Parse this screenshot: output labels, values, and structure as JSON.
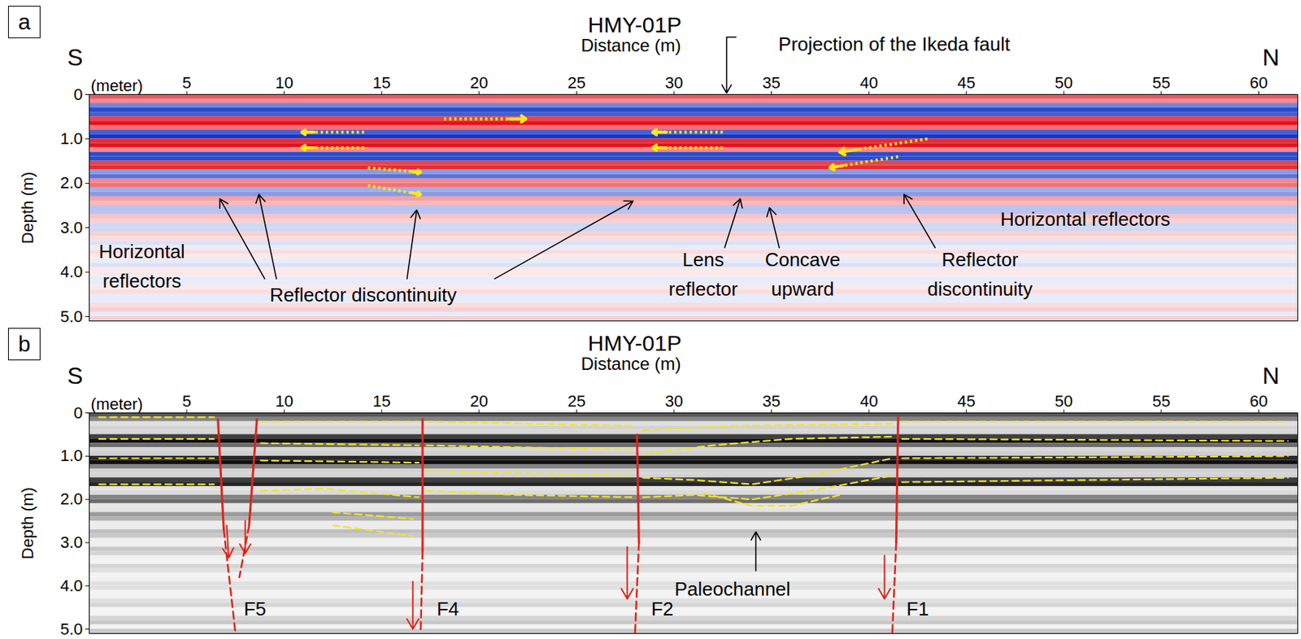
{
  "chart_data": [
    {
      "type": "radargram",
      "panel": "a",
      "title": "HMY-01P",
      "x_label": "Distance (m)",
      "x_units": "(meter)",
      "y_label": "Depth (m)",
      "left_label": "S",
      "right_label": "N",
      "color": "red-blue",
      "xlim": [
        0,
        62
      ],
      "xticks": [
        5,
        10,
        15,
        20,
        25,
        30,
        35,
        40,
        45,
        50,
        55,
        60
      ],
      "ylim": [
        0,
        5.1
      ],
      "yticks": [
        0,
        {
          "value": 1,
          "label": "1.0"
        },
        {
          "value": 2,
          "label": "2.0"
        },
        {
          "value": 3,
          "label": "3.0"
        },
        {
          "value": 4,
          "label": "4.0"
        },
        {
          "value": 5,
          "label": "5.0"
        }
      ],
      "amplitude_lim": [
        -1,
        1
      ],
      "depth_bins": [
        0,
        0.1,
        0.2,
        0.3,
        0.4,
        0.5,
        0.6,
        0.7,
        0.8,
        0.9,
        1.0,
        1.1,
        1.2,
        1.3,
        1.4,
        1.5,
        1.6,
        1.7,
        1.8,
        1.9,
        2.0,
        2.1,
        2.2,
        2.3,
        2.4,
        2.5,
        2.6,
        2.7,
        2.8,
        2.9,
        3.0,
        3.1,
        3.2,
        3.3,
        3.4,
        3.5,
        3.6,
        3.7,
        3.8,
        3.9,
        4.0,
        4.1,
        4.2,
        4.3,
        4.4,
        4.5,
        4.6,
        4.7,
        4.8,
        4.9,
        5.0,
        5.1
      ],
      "amplitude": [
        0.7,
        0.5,
        -0.6,
        -0.9,
        -0.8,
        0.8,
        1.0,
        0.6,
        -0.8,
        -1.0,
        0.9,
        1.0,
        0.5,
        -0.9,
        -0.9,
        0.8,
        0.9,
        -0.5,
        -0.7,
        0.5,
        0.6,
        -0.4,
        -0.5,
        0.4,
        0.3,
        -0.3,
        -0.3,
        0.25,
        0.2,
        -0.2,
        -0.2,
        0.2,
        0.15,
        -0.15,
        -0.1,
        0.15,
        0.1,
        -0.1,
        -0.15,
        0.1,
        0.1,
        -0.1,
        -0.1,
        0.1,
        0.15,
        -0.1,
        -0.1,
        0.15,
        0.2,
        -0.1,
        0.2
      ],
      "yellow_arrows": [
        [
          14.1,
          0.85,
          10.9,
          0.85
        ],
        [
          14.1,
          1.2,
          10.9,
          1.2
        ],
        [
          14.3,
          1.65,
          17.0,
          1.75
        ],
        [
          14.3,
          2.05,
          17.0,
          2.25
        ],
        [
          18.2,
          0.55,
          22.4,
          0.55
        ],
        [
          32.5,
          0.85,
          28.9,
          0.85
        ],
        [
          32.5,
          1.2,
          28.9,
          1.2
        ],
        [
          43.0,
          1.0,
          38.5,
          1.3
        ],
        [
          41.5,
          1.4,
          38.0,
          1.65
        ]
      ],
      "top_annotation": {
        "text": "Projection of the Ikeda fault",
        "x": 41.3,
        "arrow_x": 32.7
      },
      "annotations": [
        {
          "text": "Horizontal\nreflectors",
          "x": 2.7,
          "y": 3.8,
          "pointers": []
        },
        {
          "text": "Reflector discontinuity",
          "x": 14.05,
          "y": 4.45,
          "pointers": [
            [
              9.0,
              4.15,
              6.7,
              2.35
            ],
            [
              9.6,
              4.15,
              8.7,
              2.25
            ],
            [
              16.3,
              4.15,
              16.8,
              2.6
            ],
            [
              20.8,
              4.15,
              27.9,
              2.4
            ]
          ]
        },
        {
          "text": "Lens\nreflector",
          "x": 31.5,
          "y": 3.98,
          "pointers": [
            [
              32.6,
              3.45,
              33.4,
              2.35
            ]
          ]
        },
        {
          "text": "Concave\nupward",
          "x": 36.6,
          "y": 3.98,
          "pointers": [
            [
              35.4,
              3.45,
              34.9,
              2.55
            ]
          ]
        },
        {
          "text": "Reflector\ndiscontinuity",
          "x": 45.7,
          "y": 3.98,
          "pointers": [
            [
              43.4,
              3.45,
              41.8,
              2.25
            ]
          ]
        },
        {
          "text": "Horizontal reflectors",
          "x": 51.1,
          "y": 2.75,
          "pointers": []
        }
      ]
    },
    {
      "type": "radargram",
      "panel": "b",
      "title": "HMY-01P",
      "x_label": "Distance (m)",
      "x_units": "(meter)",
      "y_label": "Depth (m)",
      "left_label": "S",
      "right_label": "N",
      "color": "gray",
      "xlim": [
        0,
        62
      ],
      "xticks": [
        5,
        10,
        15,
        20,
        25,
        30,
        35,
        40,
        45,
        50,
        55,
        60
      ],
      "ylim": [
        0,
        5.1
      ],
      "yticks": [
        0,
        {
          "value": 1,
          "label": "1.0"
        },
        {
          "value": 2,
          "label": "2.0"
        },
        {
          "value": 3,
          "label": "3.0"
        },
        {
          "value": 4,
          "label": "4.0"
        },
        {
          "value": 5,
          "label": "5.0"
        }
      ],
      "amplitude_lim": [
        -1,
        1
      ],
      "depth_bins": [
        0,
        0.1,
        0.2,
        0.3,
        0.4,
        0.5,
        0.6,
        0.7,
        0.8,
        0.9,
        1.0,
        1.1,
        1.2,
        1.3,
        1.4,
        1.5,
        1.6,
        1.7,
        1.8,
        1.9,
        2.0,
        2.1,
        2.2,
        2.3,
        2.4,
        2.5,
        2.6,
        2.7,
        2.8,
        2.9,
        3.0,
        3.1,
        3.2,
        3.3,
        3.4,
        3.5,
        3.6,
        3.7,
        3.8,
        3.9,
        4.0,
        4.1,
        4.2,
        4.3,
        4.4,
        4.5,
        4.6,
        4.7,
        4.8,
        4.9,
        5.0,
        5.1
      ],
      "amplitude": [
        0.7,
        0.5,
        -0.6,
        -0.9,
        -0.8,
        0.8,
        1.0,
        0.6,
        -0.8,
        -1.0,
        0.9,
        1.0,
        0.5,
        -0.9,
        -0.9,
        0.8,
        0.9,
        -0.5,
        -0.7,
        0.5,
        0.6,
        -0.4,
        -0.5,
        0.4,
        0.3,
        -0.3,
        -0.3,
        0.25,
        0.2,
        -0.2,
        -0.2,
        0.2,
        0.15,
        -0.15,
        -0.1,
        0.15,
        0.1,
        -0.1,
        -0.15,
        0.1,
        0.1,
        -0.1,
        -0.1,
        0.1,
        0.15,
        -0.1,
        -0.1,
        0.15,
        0.2,
        -0.1,
        0.2
      ],
      "horizons": [
        [
          [
            0.5,
            0.1
          ],
          [
            6.4,
            0.1
          ]
        ],
        [
          [
            0.5,
            0.6
          ],
          [
            6.4,
            0.6
          ]
        ],
        [
          [
            0.5,
            1.05
          ],
          [
            6.4,
            1.05
          ]
        ],
        [
          [
            0.5,
            1.65
          ],
          [
            6.4,
            1.65
          ]
        ],
        [
          [
            8.8,
            0.2
          ],
          [
            16.9,
            0.2
          ]
        ],
        [
          [
            8.8,
            0.7
          ],
          [
            16.9,
            0.75
          ]
        ],
        [
          [
            8.8,
            1.1
          ],
          [
            16.9,
            1.15
          ]
        ],
        [
          [
            8.8,
            1.8
          ],
          [
            12,
            1.75
          ],
          [
            16.9,
            1.95
          ]
        ],
        [
          [
            12.5,
            2.3
          ],
          [
            16.6,
            2.45
          ]
        ],
        [
          [
            12.5,
            2.6
          ],
          [
            16.6,
            2.85
          ]
        ],
        [
          [
            17.3,
            0.2
          ],
          [
            27.9,
            0.3
          ]
        ],
        [
          [
            17.3,
            0.75
          ],
          [
            27.9,
            0.85
          ]
        ],
        [
          [
            17.3,
            1.35
          ],
          [
            27.9,
            1.45
          ]
        ],
        [
          [
            17.3,
            1.8
          ],
          [
            22,
            1.9
          ],
          [
            27.9,
            1.95
          ]
        ],
        [
          [
            28.4,
            0.4
          ],
          [
            33,
            0.3
          ],
          [
            41.2,
            0.25
          ]
        ],
        [
          [
            28.4,
            0.95
          ],
          [
            32,
            0.75
          ],
          [
            36,
            0.6
          ],
          [
            41.2,
            0.55
          ]
        ],
        [
          [
            28.4,
            1.5
          ],
          [
            31,
            1.55
          ],
          [
            34,
            1.65
          ],
          [
            37,
            1.45
          ],
          [
            41.2,
            1.05
          ]
        ],
        [
          [
            28.4,
            1.95
          ],
          [
            31,
            1.9
          ],
          [
            34,
            2.0
          ],
          [
            37,
            1.8
          ],
          [
            41.2,
            1.45
          ]
        ],
        [
          [
            31.5,
            1.85
          ],
          [
            34,
            2.15
          ],
          [
            36,
            2.15
          ],
          [
            38.5,
            1.9
          ]
        ],
        [
          [
            41.7,
            0.2
          ],
          [
            61.5,
            0.2
          ]
        ],
        [
          [
            41.7,
            0.6
          ],
          [
            61.5,
            0.65
          ]
        ],
        [
          [
            41.7,
            1.05
          ],
          [
            61.5,
            1.0
          ]
        ],
        [
          [
            41.7,
            1.6
          ],
          [
            61.5,
            1.5
          ]
        ]
      ],
      "faults": [
        {
          "label": "F5",
          "label_at": [
            8.5,
            4.55
          ],
          "traces": [
            {
              "solid": [
                [
                  6.6,
                  0.15
                ],
                [
                  6.9,
                  2.7
                ]
              ],
              "dashed": [
                [
                  6.9,
                  2.7
                ],
                [
                  7.5,
                  5.1
                ]
              ],
              "slip": [
                7.05,
                2.6,
                7.15,
                3.35
              ]
            },
            {
              "solid": [
                [
                  8.6,
                  0.15
                ],
                [
                  8.2,
                  2.6
                ]
              ],
              "dashed": [
                [
                  8.2,
                  2.6
                ],
                [
                  7.7,
                  3.8
                ]
              ],
              "slip": [
                8.0,
                2.5,
                8.0,
                3.25
              ]
            }
          ]
        },
        {
          "label": "F4",
          "label_at": [
            18.4,
            4.55
          ],
          "traces": [
            {
              "solid": [
                [
                  17.1,
                  0.15
                ],
                [
                  17.1,
                  3.2
                ]
              ],
              "dashed": [
                [
                  17.1,
                  3.2
                ],
                [
                  17.0,
                  5.1
                ]
              ],
              "slip": [
                16.6,
                3.9,
                16.6,
                5.0
              ]
            }
          ]
        },
        {
          "label": "F2",
          "label_at": [
            29.4,
            4.55
          ],
          "traces": [
            {
              "solid": [
                [
                  28.1,
                  0.5
                ],
                [
                  28.2,
                  3.0
                ]
              ],
              "dashed": [
                [
                  28.2,
                  3.0
                ],
                [
                  28.0,
                  5.1
                ]
              ],
              "slip": [
                27.6,
                3.1,
                27.6,
                4.3
              ]
            }
          ]
        },
        {
          "label": "F1",
          "label_at": [
            42.5,
            4.55
          ],
          "traces": [
            {
              "solid": [
                [
                  41.5,
                  0.1
                ],
                [
                  41.4,
                  3.0
                ]
              ],
              "dashed": [
                [
                  41.4,
                  3.0
                ],
                [
                  41.2,
                  5.1
                ]
              ],
              "slip": [
                40.8,
                3.3,
                40.8,
                4.3
              ]
            }
          ]
        }
      ],
      "annotations": [
        {
          "text": "Paleochannel",
          "x": 33.0,
          "y": 4.0,
          "pointers": [
            [
              34.2,
              3.65,
              34.2,
              2.75
            ]
          ]
        }
      ]
    }
  ]
}
